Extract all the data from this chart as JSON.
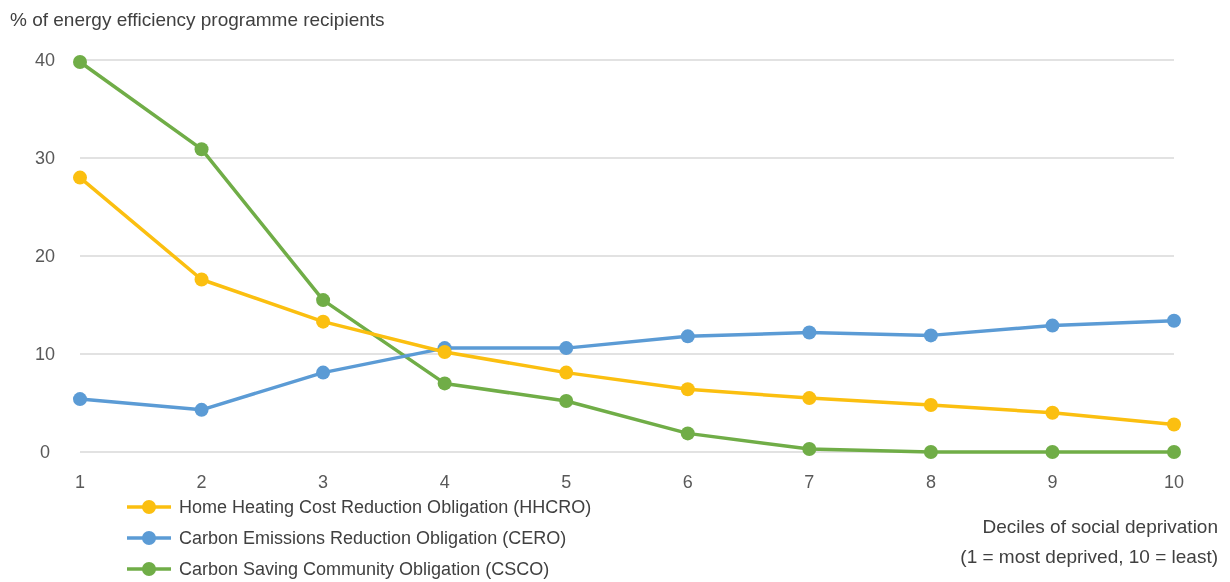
{
  "chart_data": {
    "type": "line",
    "ylabel": "% of energy efficiency programme recipients",
    "xlabel": "Deciles of social deprivation\n(1 = most deprived, 10 = least)",
    "x": [
      1,
      2,
      3,
      4,
      5,
      6,
      7,
      8,
      9,
      10
    ],
    "xlim": [
      1,
      10
    ],
    "xticks": [
      1,
      2,
      3,
      4,
      5,
      6,
      7,
      8,
      9,
      10
    ],
    "ylim": [
      0,
      40
    ],
    "yticks": [
      0,
      10,
      20,
      30,
      40
    ],
    "grid": "y",
    "legend": "bottom left",
    "marker": "circle",
    "line_style": "solid",
    "series": [
      {
        "name": "Home Heating Cost Reduction Obligation (HHCRO)",
        "color": "#fbbf10",
        "values": [
          28,
          17.6,
          13.3,
          10.2,
          8.1,
          6.4,
          5.5,
          4.8,
          4.0,
          2.8
        ]
      },
      {
        "name": "Carbon Emissions Reduction Obligation (CERO)",
        "color": "#5b9bd5",
        "values": [
          5.4,
          4.3,
          8.1,
          10.6,
          10.6,
          11.8,
          12.2,
          11.9,
          12.9,
          13.4
        ]
      },
      {
        "name": "Carbon Saving Community Obligation (CSCO)",
        "color": "#70ad47",
        "values": [
          39.8,
          30.9,
          15.5,
          7.0,
          5.2,
          1.9,
          0.3,
          0,
          0,
          0
        ]
      }
    ]
  }
}
